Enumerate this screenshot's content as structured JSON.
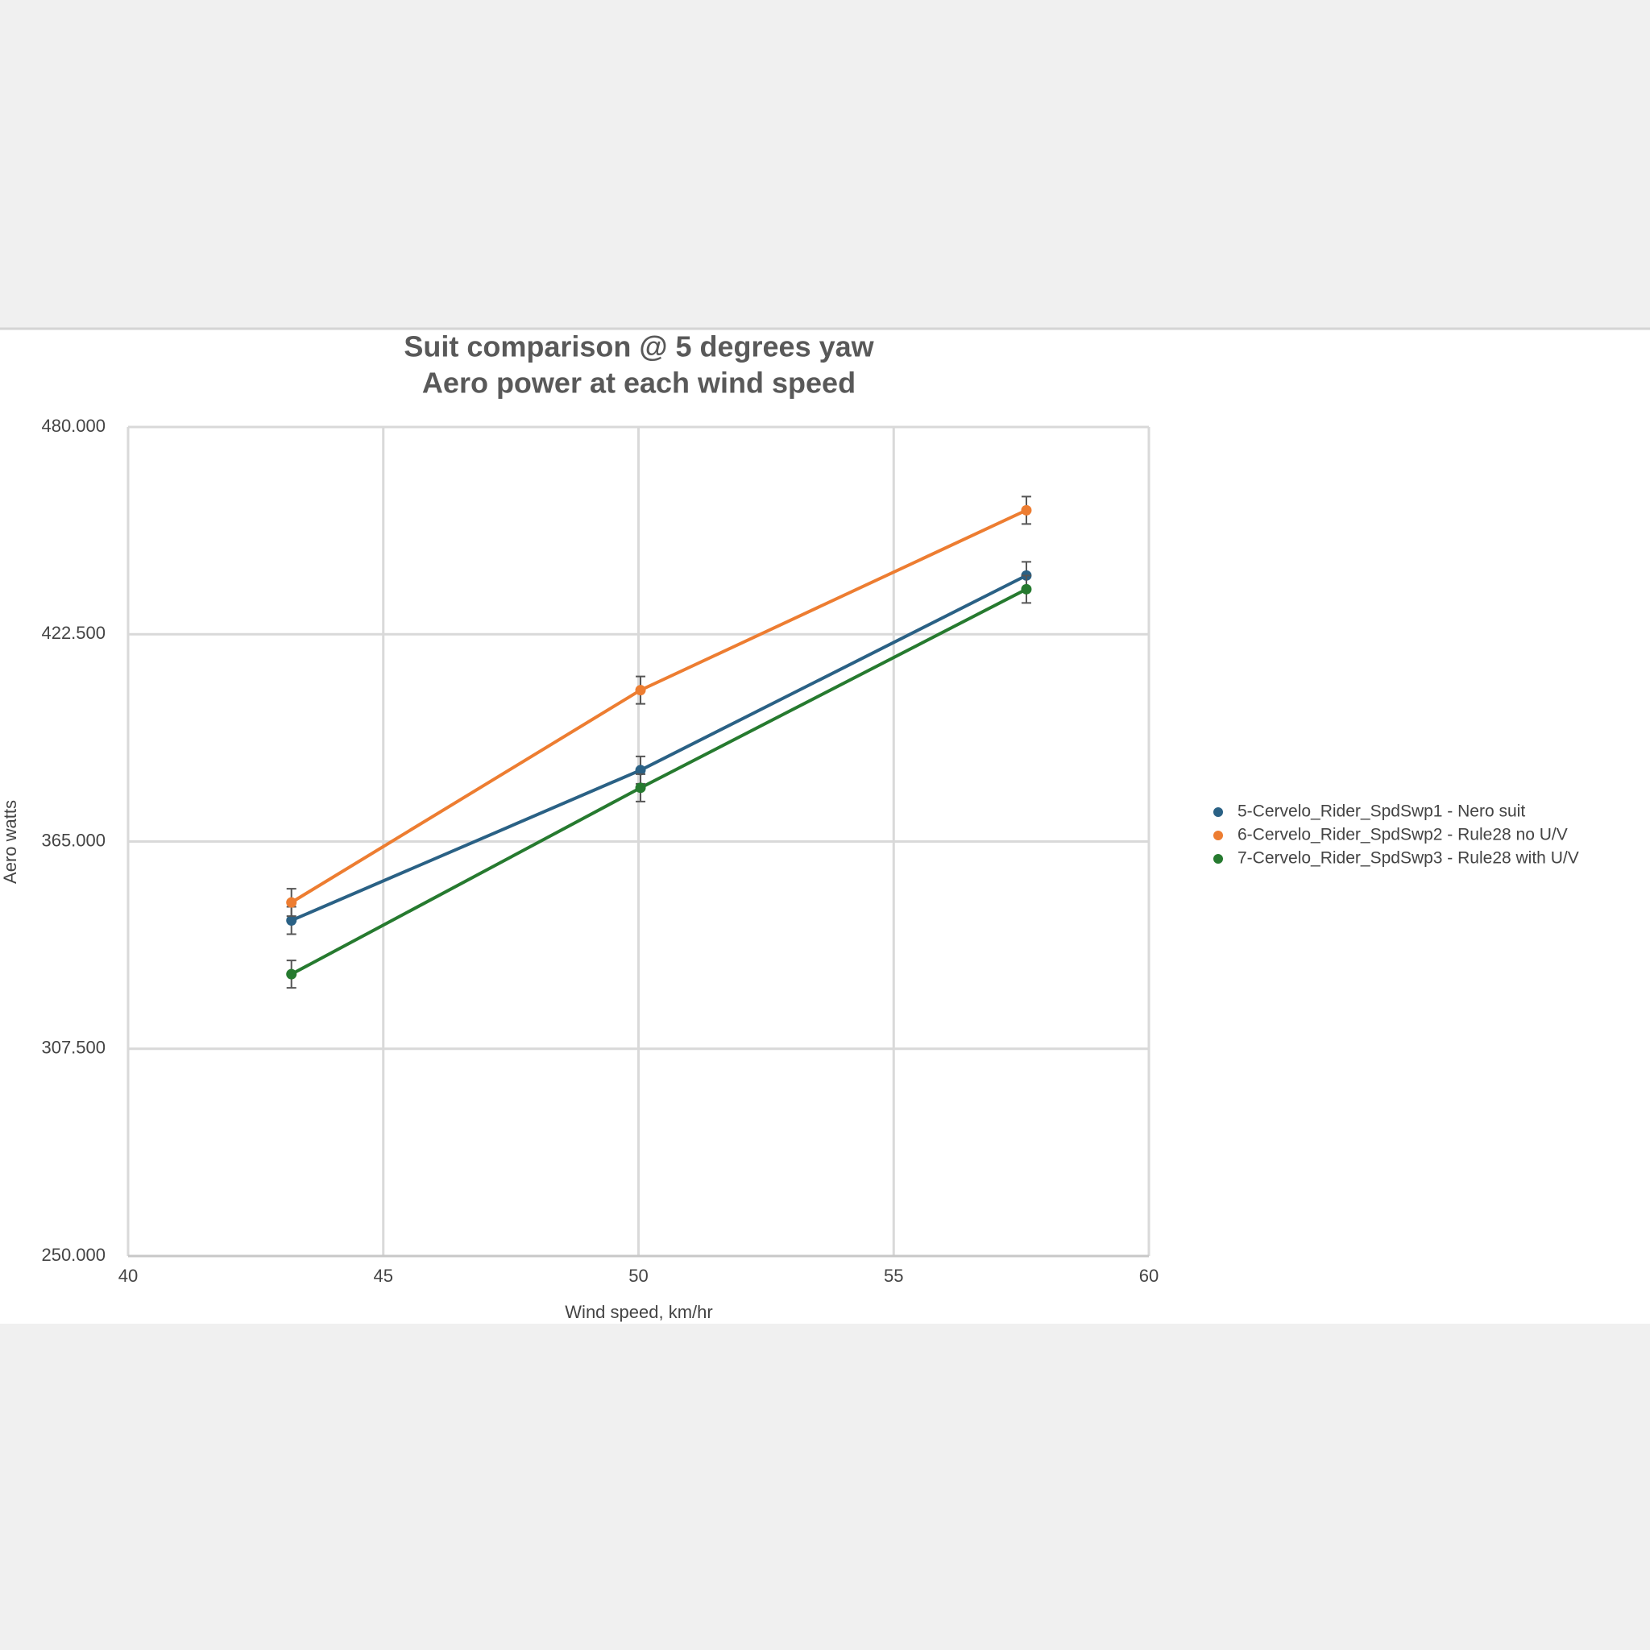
{
  "chart_data": {
    "type": "line",
    "title": "Suit comparison @ 5 degrees yaw",
    "subtitle": "Aero power at each wind speed",
    "x_label": "Wind speed, km/hr",
    "y_label": "Aero watts",
    "x": [
      43.2,
      50.04,
      57.6
    ],
    "series": [
      {
        "name": "5-Cervelo_Rider_SpdSwp1 - Nero suit",
        "color": "#2a6185",
        "values": [
          343.1,
          384.8,
          438.8
        ],
        "errors": [
          3.8,
          3.8,
          3.8
        ]
      },
      {
        "name": "6-Cervelo_Rider_SpdSwp2 - Rule28 no U/V",
        "color": "#ed7d31",
        "values": [
          348.1,
          407.0,
          456.9
        ],
        "errors": [
          3.8,
          3.8,
          3.8
        ]
      },
      {
        "name": "7-Cervelo_Rider_SpdSwp3 - Rule28 with U/V",
        "color": "#267a2f",
        "values": [
          328.2,
          379.9,
          435.0
        ],
        "errors": [
          3.8,
          3.8,
          3.8
        ]
      }
    ],
    "xlim": [
      40,
      60
    ],
    "xticks": [
      40,
      45,
      50,
      55,
      60
    ],
    "ylim": [
      250,
      480
    ],
    "yticks": [
      {
        "value": 250,
        "label": "250.000"
      },
      {
        "value": 307.5,
        "label": "307.500"
      },
      {
        "value": 365,
        "label": "365.000"
      },
      {
        "value": 422.5,
        "label": "422.500"
      },
      {
        "value": 480,
        "label": "480.000"
      }
    ],
    "grid": true,
    "legend": "right"
  }
}
